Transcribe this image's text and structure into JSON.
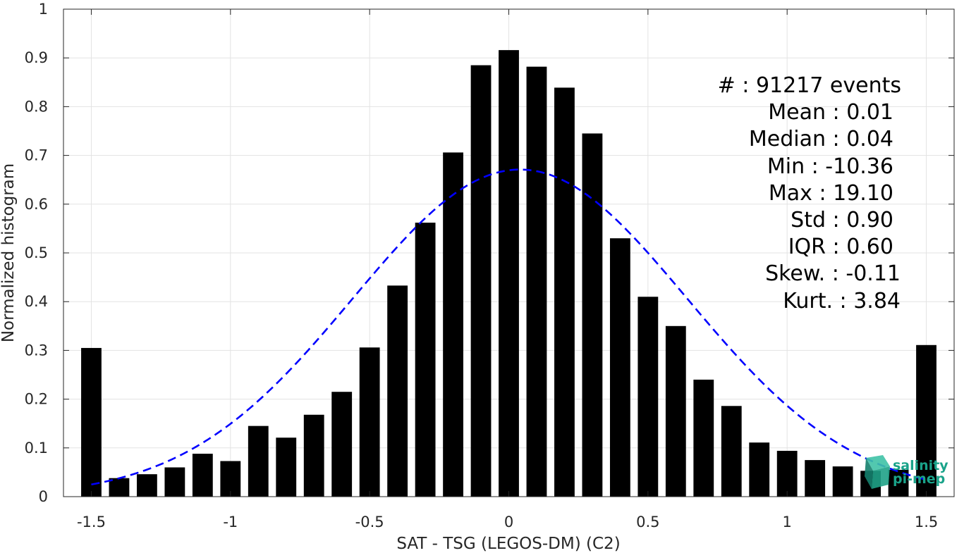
{
  "chart_data": {
    "type": "bar",
    "xlabel": "SAT - TSG (LEGOS-DM) (C2)",
    "ylabel": "Normalized histogram",
    "xlim": [
      -1.6,
      1.6
    ],
    "ylim": [
      0,
      1
    ],
    "grid": true,
    "x_ticks": [
      -1.5,
      -1,
      -0.5,
      0,
      0.5,
      1,
      1.5
    ],
    "x_tick_labels": [
      "-1.5",
      "-1",
      "-0.5",
      "0",
      "0.5",
      "1",
      "1.5"
    ],
    "y_ticks": [
      0,
      0.1,
      0.2,
      0.3,
      0.4,
      0.5,
      0.6,
      0.7,
      0.8,
      0.9,
      1
    ],
    "y_tick_labels": [
      "0",
      "0.1",
      "0.2",
      "0.3",
      "0.4",
      "0.5",
      "0.6",
      "0.7",
      "0.8",
      "0.9",
      "1"
    ],
    "bars": {
      "x": [
        -1.5,
        -1.4,
        -1.3,
        -1.2,
        -1.1,
        -1.0,
        -0.9,
        -0.8,
        -0.7,
        -0.6,
        -0.5,
        -0.4,
        -0.3,
        -0.2,
        -0.1,
        0.0,
        0.1,
        0.2,
        0.3,
        0.4,
        0.5,
        0.6,
        0.7,
        0.8,
        0.9,
        1.0,
        1.1,
        1.2,
        1.3,
        1.4,
        1.5
      ],
      "values": [
        0.305,
        0.038,
        0.046,
        0.06,
        0.088,
        0.073,
        0.145,
        0.121,
        0.168,
        0.215,
        0.306,
        0.433,
        0.562,
        0.706,
        0.885,
        0.916,
        0.882,
        0.839,
        0.745,
        0.53,
        0.41,
        0.35,
        0.24,
        0.186,
        0.111,
        0.094,
        0.075,
        0.062,
        0.053,
        0.055,
        0.311
      ],
      "color": "#000000"
    },
    "fit_curve": {
      "style": "dashed",
      "color": "#0000ff",
      "mean": 0.04,
      "sigma": 0.6,
      "peak": 0.671,
      "x_range": [
        -1.5,
        1.5
      ]
    },
    "stats": [
      "#  : 91217 events",
      "Mean : 0.01",
      "Median : 0.04",
      "Min : -10.36",
      "Max : 19.10",
      "Std : 0.90",
      "IQR : 0.60",
      "Skew. : -0.11",
      "Kurt. : 3.84"
    ]
  },
  "logo": {
    "line1": "salinity",
    "line2": "pi-mep",
    "color": "#1aa38a"
  }
}
